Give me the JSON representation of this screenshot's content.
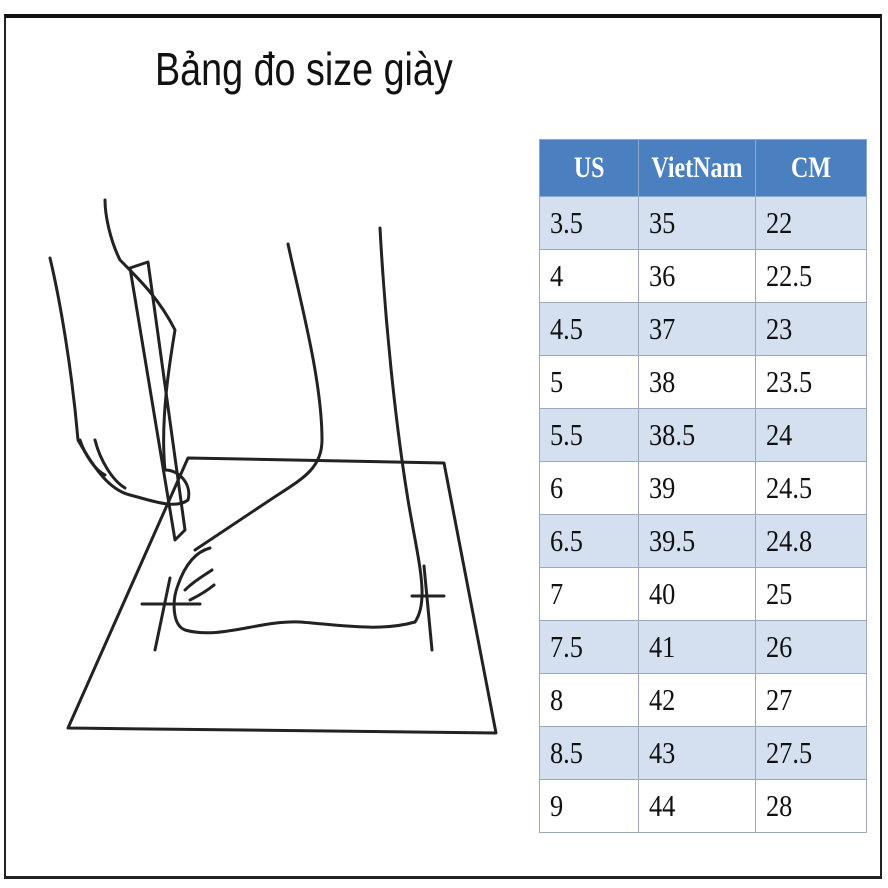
{
  "title": "Bảng đo size giày",
  "table": {
    "headers": [
      "US",
      "VietNam",
      "CM"
    ],
    "rows": [
      [
        "3.5",
        "35",
        "22"
      ],
      [
        "4",
        "36",
        "22.5"
      ],
      [
        "4.5",
        "37",
        "23"
      ],
      [
        "5",
        "38",
        "23.5"
      ],
      [
        "5.5",
        "38.5",
        "24"
      ],
      [
        "6",
        "39",
        "24.5"
      ],
      [
        "6.5",
        "39.5",
        "24.8"
      ],
      [
        "7",
        "40",
        "25"
      ],
      [
        "7.5",
        "41",
        "26"
      ],
      [
        "8",
        "42",
        "27"
      ],
      [
        "8.5",
        "43",
        "27.5"
      ],
      [
        "9",
        "44",
        "28"
      ]
    ]
  },
  "colors": {
    "header_bg": "#4a7fc0",
    "row_alt_bg": "#d4e0f0",
    "header_text": "#ffffff"
  }
}
